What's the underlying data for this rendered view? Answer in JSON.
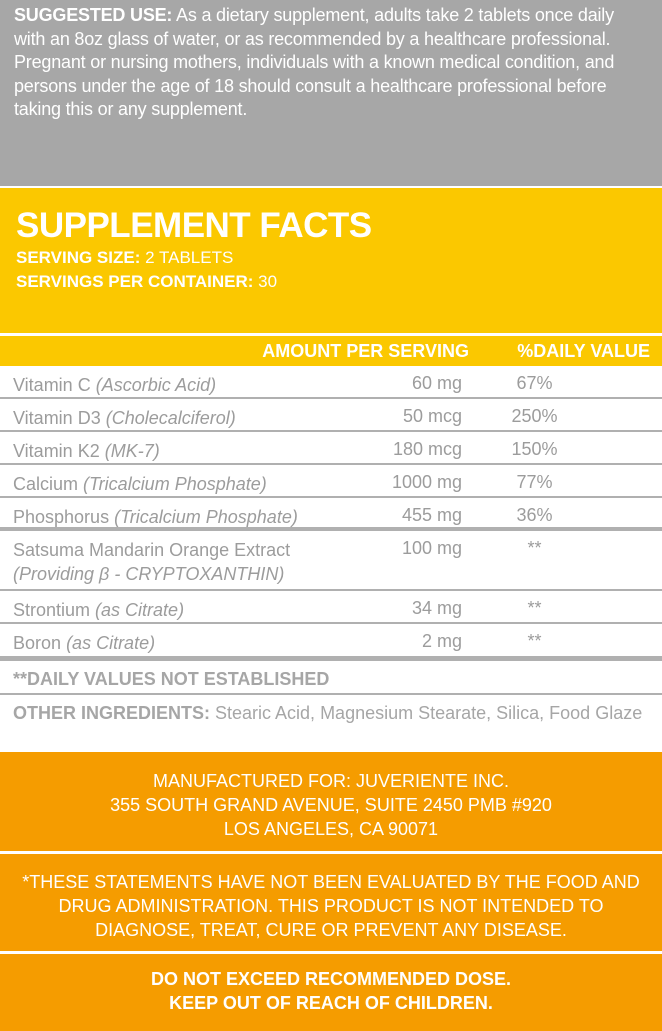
{
  "suggested_use": {
    "label": "SUGGESTED USE:",
    "text": " As a dietary supplement, adults take 2 tablets once daily with an 8oz glass of water, or as recommended by a healthcare professional. Pregnant or nursing mothers, individuals with a known medical condition, and persons under the age of 18 should consult a healthcare professional before taking this or any supplement."
  },
  "facts": {
    "title": "SUPPLEMENT FACTS",
    "serving_size_label": "SERVING SIZE:",
    "serving_size": " 2 TABLETS",
    "servings_label": "SERVINGS PER CONTAINER:",
    "servings": " 30"
  },
  "table": {
    "headers": {
      "amount": "AMOUNT PER SERVING",
      "daily": "%DAILY VALUE"
    },
    "rows": [
      {
        "name": "Vitamin C",
        "source": "(Ascorbic Acid)",
        "amount": "60 mg",
        "dv": "67%"
      },
      {
        "name": "Vitamin D3",
        "source": "(Cholecalciferol)",
        "amount": "50 mcg",
        "dv": "250%"
      },
      {
        "name": "Vitamin K2",
        "source": "(MK-7)",
        "amount": "180 mcg",
        "dv": "150%"
      },
      {
        "name": "Calcium",
        "source": "(Tricalcium Phosphate)",
        "amount": "1000 mg",
        "dv": "77%"
      },
      {
        "name": "Phosphorus",
        "source": "(Tricalcium Phosphate)",
        "amount": "455 mg",
        "dv": "36%"
      },
      {
        "name": "Satsuma Mandarin Orange Extract",
        "source": "(Providing β - CRYPTOXANTHIN)",
        "amount": "100 mg",
        "dv": "**"
      },
      {
        "name": "Strontium",
        "source": "(as Citrate)",
        "amount": "34 mg",
        "dv": "**"
      },
      {
        "name": "Boron",
        "source": "(as Citrate)",
        "amount": "2 mg",
        "dv": "**"
      }
    ]
  },
  "dv_note": "**DAILY VALUES NOT ESTABLISHED",
  "other": {
    "label": "OTHER INGREDIENTS:",
    "text": " Stearic Acid, Magnesium Stearate, Silica, Food Glaze"
  },
  "manufacturer": {
    "line1": "MANUFACTURED FOR: JUVERIENTE INC.",
    "line2": "355 SOUTH GRAND AVENUE, SUITE 2450 PMB #920",
    "line3": "LOS ANGELES, CA 90071"
  },
  "disclaimer": "*THESE STATEMENTS HAVE NOT BEEN EVALUATED BY THE FOOD AND DRUG ADMINISTRATION. THIS PRODUCT IS NOT INTENDED TO DIAGNOSE, TREAT, CURE OR PREVENT ANY DISEASE.",
  "warning": {
    "line1": "DO NOT EXCEED RECOMMENDED DOSE.",
    "line2": "KEEP OUT OF REACH OF CHILDREN."
  },
  "colors": {
    "gray": "#a7a7a7",
    "yellow": "#fbc800",
    "orange": "#f59c00",
    "text_gray": "#9c9c9c"
  }
}
